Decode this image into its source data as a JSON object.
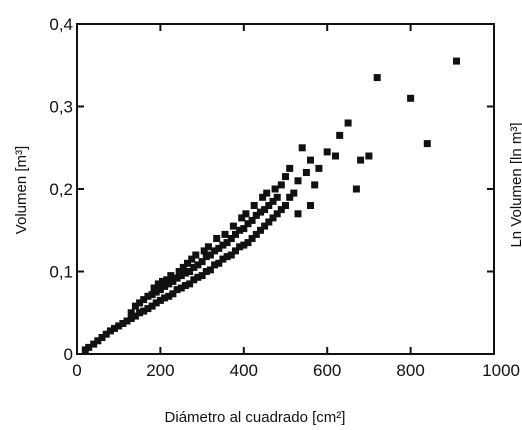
{
  "chart_data": {
    "type": "scatter",
    "title": "",
    "xlabel": "Diámetro al cuadrado [cm²]",
    "ylabel": "Volumen [m³]",
    "xlim": [
      0,
      1000
    ],
    "ylim": [
      0,
      0.4
    ],
    "xticks": [
      "0",
      "200",
      "400",
      "600",
      "800",
      "1000"
    ],
    "yticks": [
      "0",
      "0,1",
      "0,2",
      "0,3",
      "0,4"
    ],
    "grid": false,
    "marker": "square",
    "color": "#111111",
    "points": [
      [
        20,
        0.005
      ],
      [
        28,
        0.008
      ],
      [
        40,
        0.012
      ],
      [
        50,
        0.016
      ],
      [
        60,
        0.02
      ],
      [
        70,
        0.024
      ],
      [
        80,
        0.028
      ],
      [
        90,
        0.031
      ],
      [
        100,
        0.034
      ],
      [
        110,
        0.037
      ],
      [
        120,
        0.04
      ],
      [
        130,
        0.043
      ],
      [
        130,
        0.05
      ],
      [
        140,
        0.046
      ],
      [
        140,
        0.058
      ],
      [
        150,
        0.05
      ],
      [
        150,
        0.062
      ],
      [
        160,
        0.052
      ],
      [
        160,
        0.066
      ],
      [
        170,
        0.055
      ],
      [
        170,
        0.07
      ],
      [
        180,
        0.058
      ],
      [
        180,
        0.072
      ],
      [
        185,
        0.08
      ],
      [
        190,
        0.062
      ],
      [
        190,
        0.075
      ],
      [
        195,
        0.085
      ],
      [
        200,
        0.065
      ],
      [
        200,
        0.078
      ],
      [
        205,
        0.088
      ],
      [
        210,
        0.068
      ],
      [
        210,
        0.082
      ],
      [
        215,
        0.09
      ],
      [
        220,
        0.07
      ],
      [
        220,
        0.085
      ],
      [
        225,
        0.095
      ],
      [
        230,
        0.073
      ],
      [
        230,
        0.088
      ],
      [
        240,
        0.078
      ],
      [
        240,
        0.092
      ],
      [
        245,
        0.1
      ],
      [
        250,
        0.08
      ],
      [
        250,
        0.095
      ],
      [
        255,
        0.105
      ],
      [
        260,
        0.083
      ],
      [
        260,
        0.098
      ],
      [
        265,
        0.11
      ],
      [
        270,
        0.085
      ],
      [
        270,
        0.1
      ],
      [
        275,
        0.115
      ],
      [
        280,
        0.09
      ],
      [
        280,
        0.105
      ],
      [
        285,
        0.12
      ],
      [
        290,
        0.093
      ],
      [
        290,
        0.108
      ],
      [
        300,
        0.095
      ],
      [
        300,
        0.112
      ],
      [
        305,
        0.125
      ],
      [
        310,
        0.1
      ],
      [
        310,
        0.118
      ],
      [
        315,
        0.13
      ],
      [
        320,
        0.102
      ],
      [
        320,
        0.12
      ],
      [
        330,
        0.108
      ],
      [
        330,
        0.125
      ],
      [
        335,
        0.14
      ],
      [
        340,
        0.11
      ],
      [
        340,
        0.128
      ],
      [
        350,
        0.115
      ],
      [
        350,
        0.132
      ],
      [
        355,
        0.145
      ],
      [
        360,
        0.118
      ],
      [
        360,
        0.135
      ],
      [
        370,
        0.12
      ],
      [
        370,
        0.14
      ],
      [
        375,
        0.155
      ],
      [
        380,
        0.125
      ],
      [
        380,
        0.145
      ],
      [
        390,
        0.13
      ],
      [
        390,
        0.15
      ],
      [
        395,
        0.165
      ],
      [
        400,
        0.132
      ],
      [
        400,
        0.152
      ],
      [
        405,
        0.17
      ],
      [
        410,
        0.135
      ],
      [
        410,
        0.158
      ],
      [
        420,
        0.14
      ],
      [
        420,
        0.162
      ],
      [
        425,
        0.18
      ],
      [
        430,
        0.145
      ],
      [
        430,
        0.168
      ],
      [
        440,
        0.15
      ],
      [
        440,
        0.172
      ],
      [
        445,
        0.19
      ],
      [
        450,
        0.155
      ],
      [
        450,
        0.175
      ],
      [
        455,
        0.195
      ],
      [
        460,
        0.16
      ],
      [
        460,
        0.18
      ],
      [
        470,
        0.165
      ],
      [
        470,
        0.185
      ],
      [
        475,
        0.2
      ],
      [
        480,
        0.17
      ],
      [
        480,
        0.19
      ],
      [
        490,
        0.175
      ],
      [
        490,
        0.205
      ],
      [
        500,
        0.18
      ],
      [
        500,
        0.215
      ],
      [
        510,
        0.19
      ],
      [
        510,
        0.225
      ],
      [
        520,
        0.195
      ],
      [
        530,
        0.17
      ],
      [
        530,
        0.21
      ],
      [
        540,
        0.25
      ],
      [
        550,
        0.22
      ],
      [
        560,
        0.18
      ],
      [
        560,
        0.235
      ],
      [
        570,
        0.205
      ],
      [
        580,
        0.225
      ],
      [
        600,
        0.245
      ],
      [
        620,
        0.24
      ],
      [
        630,
        0.265
      ],
      [
        650,
        0.28
      ],
      [
        670,
        0.2
      ],
      [
        680,
        0.235
      ],
      [
        700,
        0.24
      ],
      [
        720,
        0.335
      ],
      [
        800,
        0.31
      ],
      [
        840,
        0.255
      ],
      [
        910,
        0.355
      ]
    ]
  },
  "partial_label": "Ln Volumen [ln m³]"
}
